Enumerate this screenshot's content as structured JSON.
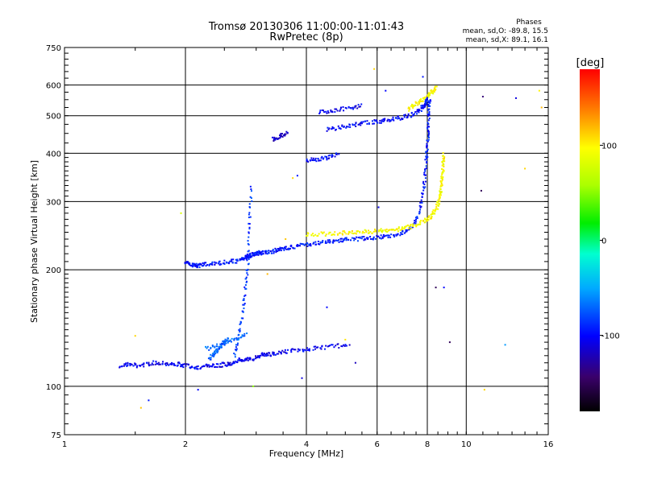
{
  "chart_data": {
    "type": "scatter",
    "title": "Tromsø 20130306 11:00:00-11:01:43",
    "subtitle": "RwPretec (8p)",
    "xlabel": "Frequency [MHz]",
    "ylabel": "Stationary phase Virtual Height [km]",
    "xscale": "log",
    "yscale": "log",
    "xlim": [
      1,
      16
    ],
    "ylim": [
      75,
      750
    ],
    "xticks": [
      1,
      2,
      4,
      6,
      8,
      10,
      16
    ],
    "xtick_labels": [
      "1",
      "2",
      "4",
      "6",
      "8",
      "10",
      "16"
    ],
    "yticks": [
      75,
      100,
      200,
      300,
      400,
      500,
      600,
      750
    ],
    "ytick_labels": [
      "75",
      "100",
      "200",
      "300",
      "400",
      "500",
      "600",
      "750"
    ],
    "grid": true,
    "colorbar": {
      "label": "[deg]",
      "range": [
        -180,
        180
      ],
      "ticks": [
        100,
        0,
        -100
      ],
      "tick_labels": [
        "100",
        "0",
        "-100"
      ]
    },
    "stats": {
      "title": "Phases",
      "o_line": "mean, sd,O: -89.8, 15.5",
      "x_line": "mean, sd,X:  89.1, 16.1"
    },
    "traces": [
      {
        "x": [
          1.38,
          1.44,
          1.52,
          1.6,
          1.68,
          1.76,
          1.85,
          1.93,
          2.0,
          2.1,
          2.2,
          2.3,
          2.4,
          2.5,
          2.58,
          2.66,
          2.75,
          2.85,
          2.95,
          3.05,
          3.15,
          3.25,
          3.4,
          3.6,
          3.85,
          4.1,
          4.4,
          4.75,
          5.1
        ],
        "y": [
          113,
          114,
          113,
          114,
          115,
          115,
          114,
          114,
          113,
          112,
          112,
          113,
          113,
          114,
          114,
          116,
          117,
          117,
          118,
          120,
          121,
          121,
          122,
          123,
          124,
          125,
          126,
          127,
          128
        ],
        "phase": -105
      },
      {
        "x": [
          2.0,
          2.05,
          2.1,
          2.15,
          2.2,
          2.3,
          2.4,
          2.5,
          2.6,
          2.7,
          2.8,
          2.85,
          2.9,
          2.95,
          3.0,
          3.05,
          3.1,
          3.2,
          3.3,
          3.4,
          3.5,
          3.6,
          3.8,
          4.0,
          4.2,
          4.4,
          4.6,
          4.8,
          5.0,
          5.3,
          5.6,
          5.9,
          6.2,
          6.5,
          6.8,
          7.1,
          7.4,
          7.6,
          7.75,
          7.85,
          7.92,
          7.97,
          8.01,
          8.04,
          8.07,
          8.09,
          8.1
        ],
        "y": [
          210,
          206,
          205,
          205,
          206,
          207,
          208,
          209,
          210,
          211,
          214,
          216,
          218,
          219,
          220,
          221,
          221,
          222,
          223,
          225,
          226,
          228,
          230,
          232,
          234,
          236,
          237,
          238,
          239,
          240,
          241,
          242,
          243,
          245,
          248,
          252,
          262,
          278,
          300,
          330,
          360,
          395,
          425,
          460,
          495,
          525,
          550
        ],
        "phase": -95
      },
      {
        "x": [
          4.0,
          4.3,
          4.6,
          4.9,
          5.2,
          5.5,
          5.8,
          6.1,
          6.4,
          6.7,
          7.0,
          7.3,
          7.6,
          7.9,
          8.1,
          8.3,
          8.45,
          8.55,
          8.62,
          8.67,
          8.71,
          8.74,
          8.77,
          8.8
        ],
        "y": [
          246,
          247,
          248,
          249,
          250,
          251,
          251,
          252,
          253,
          254,
          256,
          259,
          263,
          268,
          273,
          280,
          290,
          300,
          315,
          330,
          345,
          360,
          380,
          400
        ],
        "phase": 95
      },
      {
        "x": [
          7.2,
          7.4,
          7.6,
          7.8,
          8.0,
          8.15,
          8.3,
          8.4
        ],
        "y": [
          520,
          530,
          540,
          550,
          560,
          570,
          580,
          590
        ],
        "phase": 95
      },
      {
        "x": [
          4.5,
          4.8,
          5.1,
          5.4,
          5.7,
          6.0,
          6.3,
          6.6,
          6.9,
          7.2,
          7.5,
          7.7,
          7.85,
          7.95,
          8.0
        ],
        "y": [
          460,
          465,
          470,
          475,
          480,
          483,
          486,
          490,
          494,
          500,
          510,
          520,
          530,
          540,
          550
        ],
        "phase": -100
      },
      {
        "x": [
          4.3,
          4.6,
          4.9,
          5.2,
          5.5
        ],
        "y": [
          510,
          515,
          520,
          525,
          530
        ],
        "phase": -105
      },
      {
        "x": [
          4.0,
          4.2,
          4.4,
          4.6,
          4.8
        ],
        "y": [
          382,
          385,
          388,
          392,
          398
        ],
        "phase": -100
      },
      {
        "x": [
          3.3,
          3.4,
          3.5,
          3.6
        ],
        "y": [
          435,
          440,
          445,
          450
        ],
        "phase": -115
      },
      {
        "x": [
          2.65,
          2.7,
          2.75,
          2.8,
          2.83,
          2.86,
          2.88,
          2.9,
          2.92
        ],
        "y": [
          120,
          132,
          148,
          165,
          185,
          205,
          240,
          280,
          330
        ],
        "phase": -85
      },
      {
        "x": [
          2.3,
          2.35,
          2.4,
          2.45,
          2.5,
          2.55
        ],
        "y": [
          118,
          121,
          124,
          127,
          130,
          133
        ],
        "phase": -75
      },
      {
        "x": [
          2.25,
          2.4,
          2.55,
          2.7,
          2.85
        ],
        "y": [
          125,
          127,
          130,
          133,
          136
        ],
        "phase": -70
      }
    ],
    "scatter_points": [
      {
        "x": 1.55,
        "y": 88,
        "phase": 115
      },
      {
        "x": 1.5,
        "y": 135,
        "phase": 110
      },
      {
        "x": 1.62,
        "y": 92,
        "phase": -95
      },
      {
        "x": 1.95,
        "y": 280,
        "phase": 80
      },
      {
        "x": 2.15,
        "y": 98,
        "phase": -100
      },
      {
        "x": 2.95,
        "y": 100,
        "phase": 50
      },
      {
        "x": 3.2,
        "y": 195,
        "phase": 120
      },
      {
        "x": 3.55,
        "y": 240,
        "phase": 115
      },
      {
        "x": 3.7,
        "y": 345,
        "phase": 110
      },
      {
        "x": 3.8,
        "y": 350,
        "phase": -95
      },
      {
        "x": 3.9,
        "y": 105,
        "phase": -110
      },
      {
        "x": 4.5,
        "y": 160,
        "phase": -100
      },
      {
        "x": 5.0,
        "y": 132,
        "phase": 105
      },
      {
        "x": 5.3,
        "y": 115,
        "phase": -120
      },
      {
        "x": 5.9,
        "y": 660,
        "phase": 110
      },
      {
        "x": 6.05,
        "y": 290,
        "phase": -105
      },
      {
        "x": 6.3,
        "y": 580,
        "phase": -100
      },
      {
        "x": 7.8,
        "y": 630,
        "phase": -95
      },
      {
        "x": 8.4,
        "y": 180,
        "phase": -150
      },
      {
        "x": 8.8,
        "y": 180,
        "phase": -100
      },
      {
        "x": 9.1,
        "y": 130,
        "phase": -150
      },
      {
        "x": 11.0,
        "y": 560,
        "phase": -140
      },
      {
        "x": 10.9,
        "y": 320,
        "phase": -150
      },
      {
        "x": 11.1,
        "y": 98,
        "phase": 110
      },
      {
        "x": 12.5,
        "y": 128,
        "phase": -55
      },
      {
        "x": 13.3,
        "y": 555,
        "phase": -110
      },
      {
        "x": 14.0,
        "y": 365,
        "phase": 110
      },
      {
        "x": 15.2,
        "y": 580,
        "phase": 100
      },
      {
        "x": 15.4,
        "y": 525,
        "phase": 120
      }
    ]
  }
}
